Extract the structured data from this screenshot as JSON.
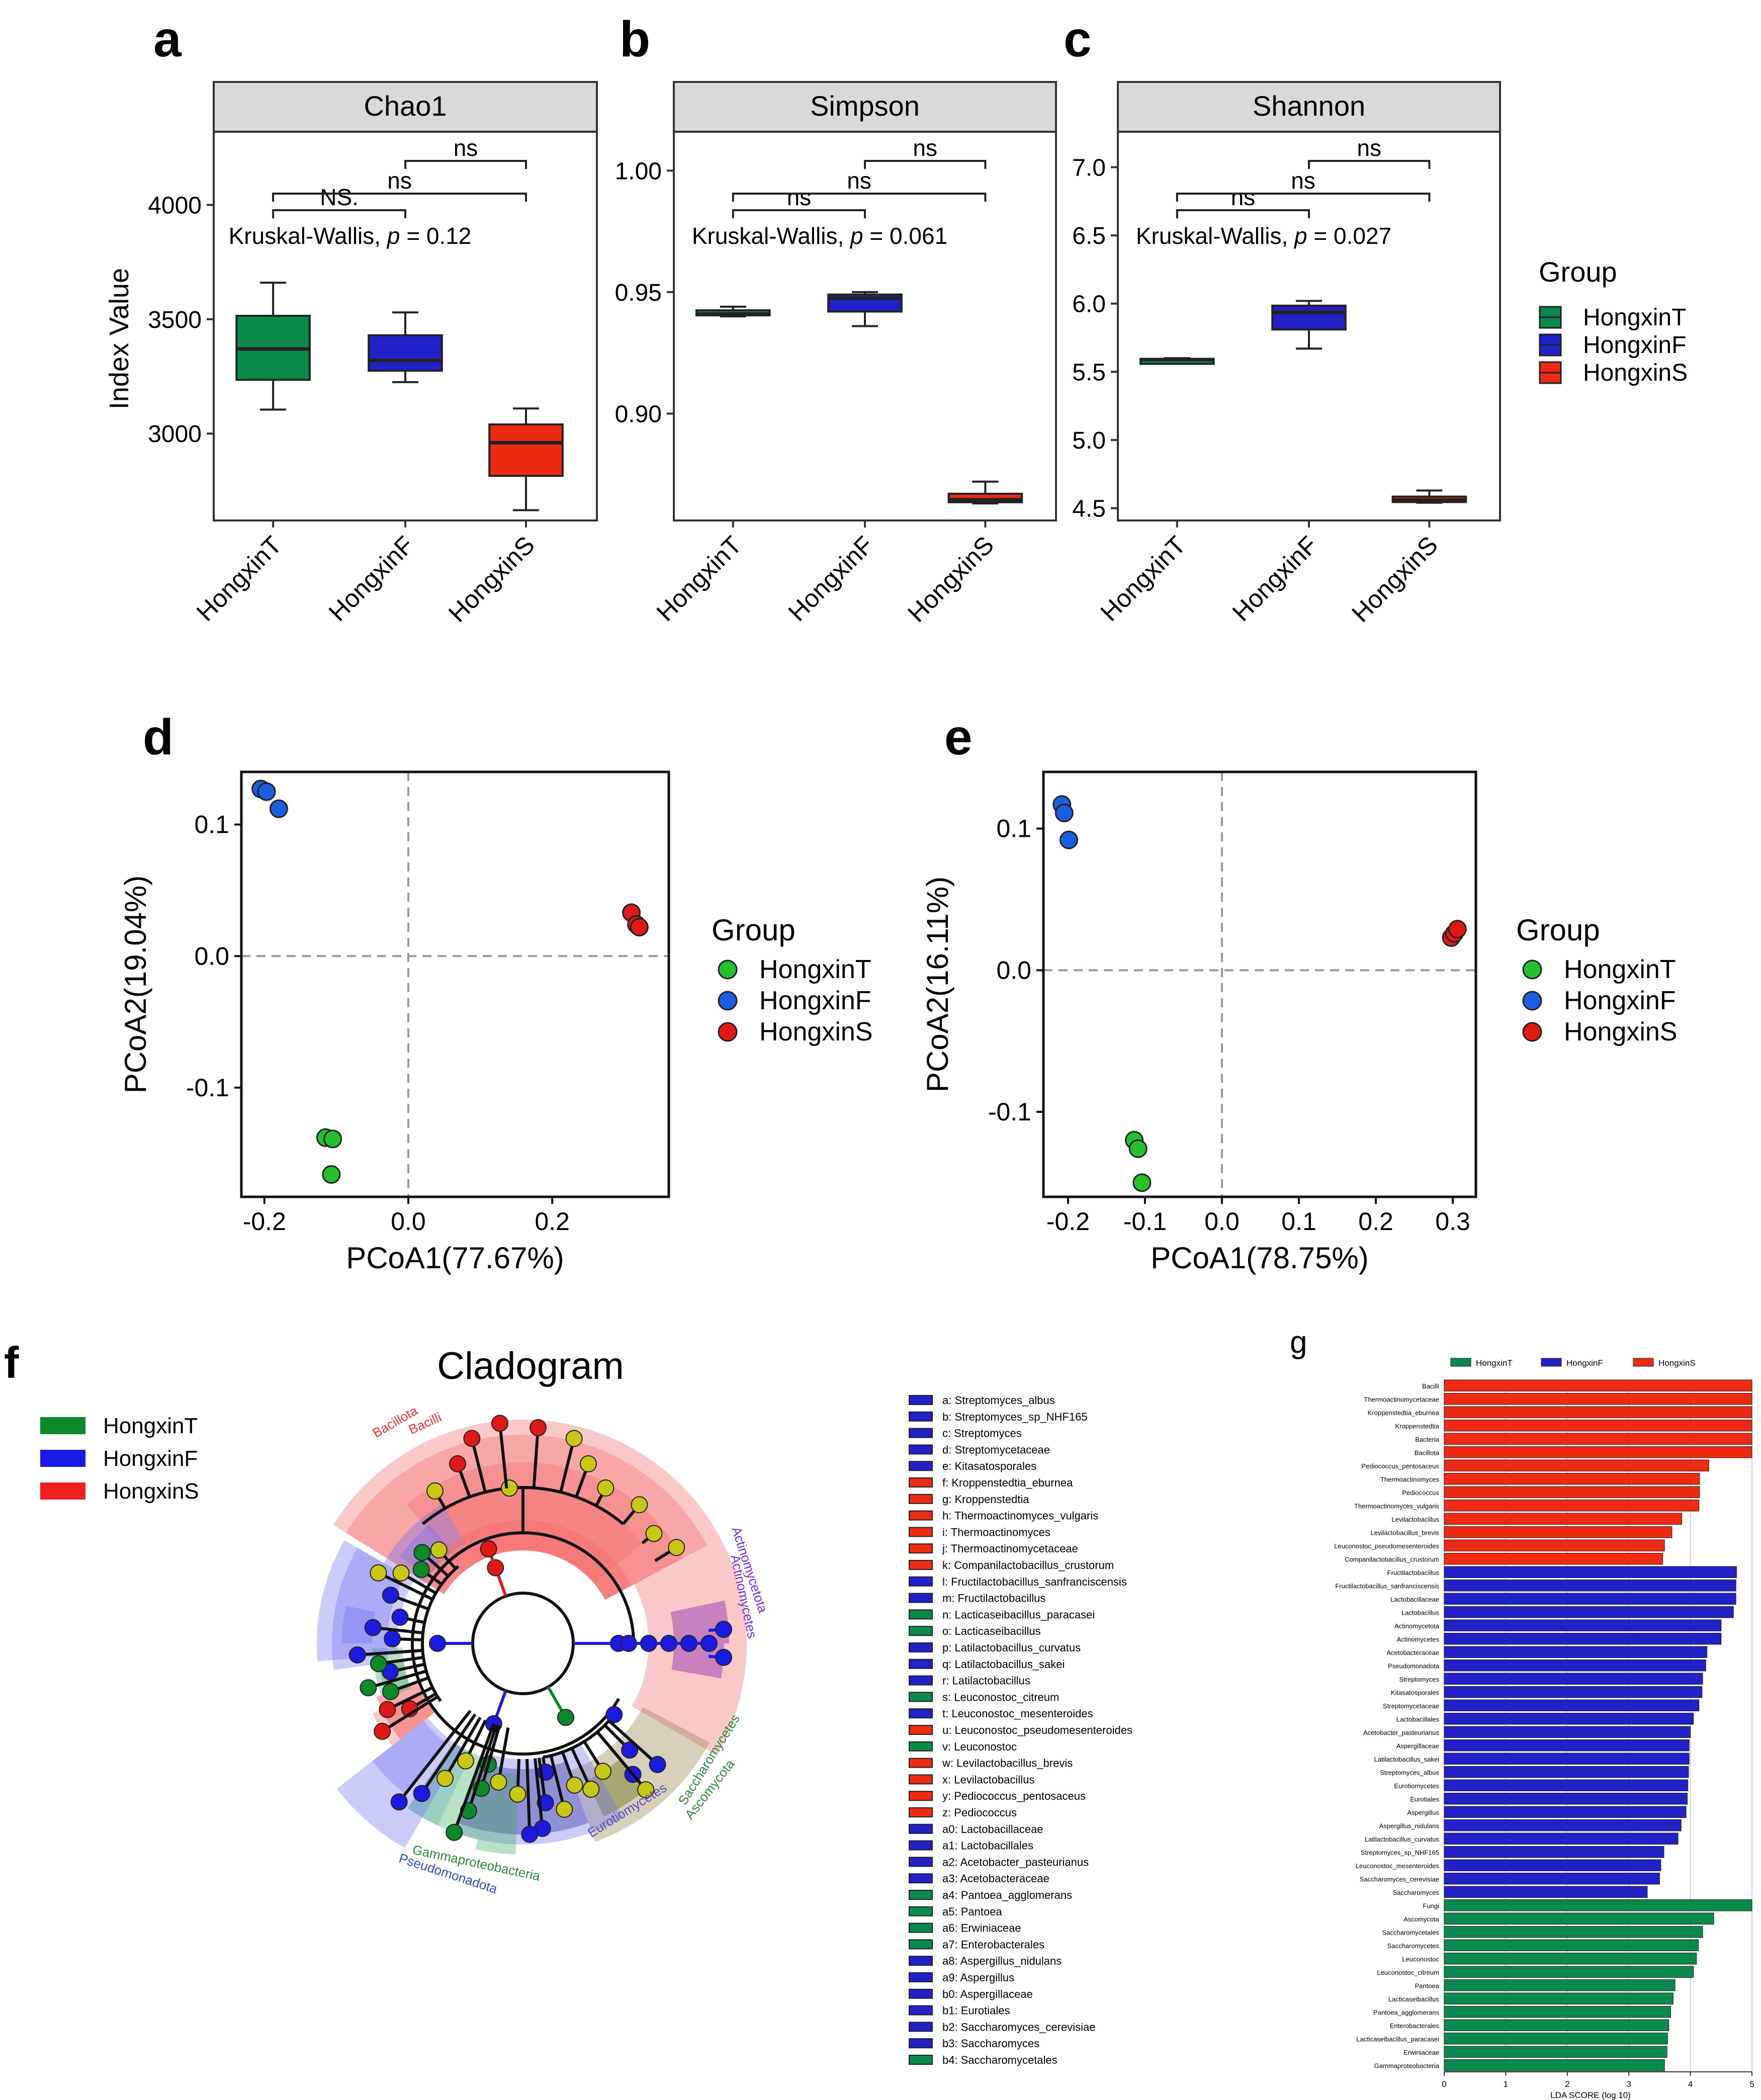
{
  "panel_labels": {
    "a": "a",
    "b": "b",
    "c": "c",
    "d": "d",
    "e": "e",
    "f": "f",
    "g": "g"
  },
  "colors": {
    "T": "#0a8a4a",
    "F": "#2121c8",
    "S": "#ee2a12",
    "Tpt": "#22c12d",
    "Fpt": "#1a5ee0",
    "Spt": "#e01818"
  },
  "alpha_groups": [
    "HongxinT",
    "HongxinF",
    "HongxinS"
  ],
  "alpha_legend": {
    "title": "Group",
    "items": [
      "HongxinT",
      "HongxinF",
      "HongxinS"
    ]
  },
  "pcoa_legend": {
    "title": "Group",
    "items": [
      "HongxinT",
      "HongxinF",
      "HongxinS"
    ]
  },
  "sig_labels": {
    "chao_short": "NS.",
    "ns": "ns"
  },
  "chart_data": [
    {
      "type": "box",
      "id": "a",
      "title": "Chao1",
      "ylabel": "Index Value",
      "ylim": [
        2620,
        4320
      ],
      "yticks": [
        3000,
        3500,
        4000
      ],
      "kw": {
        "prefix": "Kruskal-Wallis, ",
        "p": "p",
        "value": " = 0.12"
      },
      "boxes": [
        {
          "group": "HongxinT",
          "min": 3105,
          "q1": 3235,
          "median": 3370,
          "q3": 3515,
          "max": 3660
        },
        {
          "group": "HongxinF",
          "min": 3225,
          "q1": 3275,
          "median": 3320,
          "q3": 3430,
          "max": 3530
        },
        {
          "group": "HongxinS",
          "min": 2665,
          "q1": 2815,
          "median": 2960,
          "q3": 3040,
          "max": 3110
        }
      ]
    },
    {
      "type": "box",
      "id": "b",
      "title": "Simpson",
      "ylabel": "",
      "ylim": [
        0.856,
        1.016
      ],
      "yticks": [
        0.9,
        0.95,
        1.0
      ],
      "ytick_labels": [
        "0.90",
        "0.95",
        "1.00"
      ],
      "kw": {
        "prefix": "Kruskal-Wallis, ",
        "p": "p",
        "value": " = 0.061"
      },
      "boxes": [
        {
          "group": "HongxinT",
          "min": 0.94,
          "q1": 0.9405,
          "median": 0.941,
          "q3": 0.9425,
          "max": 0.944
        },
        {
          "group": "HongxinF",
          "min": 0.936,
          "q1": 0.942,
          "median": 0.9475,
          "q3": 0.949,
          "max": 0.95
        },
        {
          "group": "HongxinS",
          "min": 0.863,
          "q1": 0.8635,
          "median": 0.8645,
          "q3": 0.867,
          "max": 0.872
        }
      ]
    },
    {
      "type": "box",
      "id": "c",
      "title": "Shannon",
      "ylabel": "",
      "ylim": [
        4.41,
        7.26
      ],
      "yticks": [
        4.5,
        5.0,
        5.5,
        6.0,
        6.5,
        7.0
      ],
      "ytick_labels": [
        "4.5",
        "5.0",
        "5.5",
        "6.0",
        "6.5",
        "7.0"
      ],
      "kw": {
        "prefix": "Kruskal-Wallis, ",
        "p": "p",
        "value": " = 0.027"
      },
      "boxes": [
        {
          "group": "HongxinT",
          "min": 5.575,
          "q1": 5.58,
          "median": 5.59,
          "q3": 5.595,
          "max": 5.6
        },
        {
          "group": "HongxinF",
          "min": 5.67,
          "q1": 5.81,
          "median": 5.935,
          "q3": 5.985,
          "max": 6.02
        },
        {
          "group": "HongxinS",
          "min": 4.54,
          "q1": 4.545,
          "median": 4.56,
          "q3": 4.585,
          "max": 4.63
        }
      ]
    },
    {
      "type": "scatter",
      "id": "d",
      "xlabel": "PCoA1(77.67%)",
      "ylabel": "PCoA2(19.04%)",
      "xlim": [
        -0.232,
        0.362
      ],
      "ylim": [
        -0.183,
        0.14
      ],
      "xticks": [
        -0.2,
        0.0,
        0.2
      ],
      "xtick_labels": [
        "-0.2",
        "0.0",
        "0.2"
      ],
      "yticks": [
        -0.1,
        0.0,
        0.1
      ],
      "ytick_labels": [
        "-0.1",
        "0.0",
        "0.1"
      ],
      "series": [
        {
          "name": "HongxinT",
          "points": [
            [
              -0.115,
              -0.138
            ],
            [
              -0.105,
              -0.139
            ],
            [
              -0.107,
              -0.166
            ]
          ]
        },
        {
          "name": "HongxinF",
          "points": [
            [
              -0.205,
              0.127
            ],
            [
              -0.197,
              0.125
            ],
            [
              -0.18,
              0.112
            ]
          ]
        },
        {
          "name": "HongxinS",
          "points": [
            [
              0.31,
              0.033
            ],
            [
              0.317,
              0.024
            ],
            [
              0.321,
              0.022
            ]
          ]
        }
      ]
    },
    {
      "type": "scatter",
      "id": "e",
      "xlabel": "PCoA1(78.75%)",
      "ylabel": "PCoA2(16.11%)",
      "xlim": [
        -0.232,
        0.33
      ],
      "ylim": [
        -0.16,
        0.14
      ],
      "xticks": [
        -0.2,
        -0.1,
        0.0,
        0.1,
        0.2,
        0.3
      ],
      "xtick_labels": [
        "-0.2",
        "-0.1",
        "0.0",
        "0.1",
        "0.2",
        "0.3"
      ],
      "yticks": [
        -0.1,
        0.0,
        0.1
      ],
      "ytick_labels": [
        "-0.1",
        "0.0",
        "0.1"
      ],
      "series": [
        {
          "name": "HongxinT",
          "points": [
            [
              -0.114,
              -0.12
            ],
            [
              -0.109,
              -0.126
            ],
            [
              -0.104,
              -0.15
            ]
          ]
        },
        {
          "name": "HongxinF",
          "points": [
            [
              -0.208,
              0.117
            ],
            [
              -0.205,
              0.111
            ],
            [
              -0.199,
              0.092
            ]
          ]
        },
        {
          "name": "HongxinS",
          "points": [
            [
              0.298,
              0.023
            ],
            [
              0.302,
              0.026
            ],
            [
              0.306,
              0.029
            ]
          ]
        }
      ]
    },
    {
      "type": "bar",
      "id": "g",
      "orientation": "horizontal",
      "xlabel": "LDA SCORE (log 10)",
      "xlim": [
        0,
        5
      ],
      "xticks": [
        0,
        1,
        2,
        3,
        4,
        5
      ],
      "legend": [
        "HongxinT",
        "HongxinF",
        "HongxinS"
      ],
      "categories": [
        "Bacilli",
        "Thermoactinomycetaceae",
        "Kroppenstedtia_eburnea",
        "Kroppenstedtia",
        "Bacteria",
        "Bacillota",
        "Pediococcus_pentosaceus",
        "Thermoactinomyces",
        "Pediococcus",
        "Thermoactinomyces_vulgaris",
        "Levilactobacillus",
        "Levilactobacillus_brevis",
        "Leuconostoc_pseudomesenteroides",
        "Companilactobacillus_crustorum",
        "Fructilactobacillus",
        "Fructilactobacillus_sanfranciscensis",
        "Lactobacillaceae",
        "Lactobacillus",
        "Actinomycetota",
        "Actinomycetes",
        "Acetobacteraceae",
        "Pseudomonadota",
        "Streptomyces",
        "Kitasatosporales",
        "Streptomycetaceae",
        "Lactobacillales",
        "Acetobacter_pasteurianus",
        "Aspergillaceae",
        "Latilactobacillus_sakei",
        "Streptomyces_albus",
        "Eurotiomycetes",
        "Eurotiales",
        "Aspergillus",
        "Aspergillus_nidulans",
        "Latilactobacillus_curvatus",
        "Streptomyces_sp_NHF165",
        "Leuconostoc_mesenteroides",
        "Saccharomyces_cerevisiae",
        "Saccharomyces",
        "Fungi",
        "Ascomycota",
        "Saccharomycetales",
        "Saccharomycetes",
        "Leuconostoc",
        "Leuconostoc_citreum",
        "Pantoea",
        "Lacticaseibacillus",
        "Pantoea_agglomerans",
        "Enterobacterales",
        "Lacticaseibacillus_paracasei",
        "Erwiniaceae",
        "Gammaproteobacteria"
      ],
      "groups": [
        "HongxinS",
        "HongxinS",
        "HongxinS",
        "HongxinS",
        "HongxinS",
        "HongxinS",
        "HongxinS",
        "HongxinS",
        "HongxinS",
        "HongxinS",
        "HongxinS",
        "HongxinS",
        "HongxinS",
        "HongxinS",
        "HongxinF",
        "HongxinF",
        "HongxinF",
        "HongxinF",
        "HongxinF",
        "HongxinF",
        "HongxinF",
        "HongxinF",
        "HongxinF",
        "HongxinF",
        "HongxinF",
        "HongxinF",
        "HongxinF",
        "HongxinF",
        "HongxinF",
        "HongxinF",
        "HongxinF",
        "HongxinF",
        "HongxinF",
        "HongxinF",
        "HongxinF",
        "HongxinF",
        "HongxinF",
        "HongxinF",
        "HongxinF",
        "HongxinT",
        "HongxinT",
        "HongxinT",
        "HongxinT",
        "HongxinT",
        "HongxinT",
        "HongxinT",
        "HongxinT",
        "HongxinT",
        "HongxinT",
        "HongxinT",
        "HongxinT",
        "HongxinT"
      ],
      "values": [
        5.1,
        5.08,
        5.05,
        5.05,
        5.04,
        5.03,
        4.3,
        4.15,
        4.15,
        4.14,
        3.86,
        3.7,
        3.58,
        3.55,
        4.75,
        4.74,
        4.74,
        4.7,
        4.5,
        4.5,
        4.27,
        4.25,
        4.2,
        4.19,
        4.14,
        4.05,
        4.0,
        3.98,
        3.98,
        3.97,
        3.96,
        3.95,
        3.93,
        3.85,
        3.8,
        3.57,
        3.52,
        3.5,
        3.3,
        5.1,
        4.38,
        4.2,
        4.13,
        4.1,
        4.05,
        3.75,
        3.72,
        3.68,
        3.65,
        3.63,
        3.62,
        3.58
      ]
    }
  ],
  "cladogram": {
    "title": "Cladogram",
    "legend": [
      "HongxinT",
      "HongxinF",
      "HongxinS"
    ],
    "clade_labels": [
      "Bacillota",
      "Bacilli",
      "Actinomycetota",
      "Actinomycetes",
      "Saccharomycetes",
      "Ascomycota",
      "Eurotiomycetes",
      "Gammaproteobacteria",
      "Pseudomonadota"
    ],
    "taxa": [
      {
        "code": "a",
        "name": "Streptomyces_albus",
        "group": "F"
      },
      {
        "code": "b",
        "name": "Streptomyces_sp_NHF165",
        "group": "F"
      },
      {
        "code": "c",
        "name": "Streptomyces",
        "group": "F"
      },
      {
        "code": "d",
        "name": "Streptomycetaceae",
        "group": "F"
      },
      {
        "code": "e",
        "name": "Kitasatosporales",
        "group": "F"
      },
      {
        "code": "f",
        "name": "Kroppenstedtia_eburnea",
        "group": "S"
      },
      {
        "code": "g",
        "name": "Kroppenstedtia",
        "group": "S"
      },
      {
        "code": "h",
        "name": "Thermoactinomyces_vulgaris",
        "group": "S"
      },
      {
        "code": "i",
        "name": "Thermoactinomyces",
        "group": "S"
      },
      {
        "code": "j",
        "name": "Thermoactinomycetaceae",
        "group": "S"
      },
      {
        "code": "k",
        "name": "Companilactobacillus_crustorum",
        "group": "S"
      },
      {
        "code": "l",
        "name": "Fructilactobacillus_sanfranciscensis",
        "group": "F"
      },
      {
        "code": "m",
        "name": "Fructilactobacillus",
        "group": "F"
      },
      {
        "code": "n",
        "name": "Lacticaseibacillus_paracasei",
        "group": "T"
      },
      {
        "code": "o",
        "name": "Lacticaseibacillus",
        "group": "T"
      },
      {
        "code": "p",
        "name": "Latilactobacillus_curvatus",
        "group": "F"
      },
      {
        "code": "q",
        "name": "Latilactobacillus_sakei",
        "group": "F"
      },
      {
        "code": "r",
        "name": "Latilactobacillus",
        "group": "F"
      },
      {
        "code": "s",
        "name": "Leuconostoc_citreum",
        "group": "T"
      },
      {
        "code": "t",
        "name": "Leuconostoc_mesenteroides",
        "group": "F"
      },
      {
        "code": "u",
        "name": "Leuconostoc_pseudomesenteroides",
        "group": "S"
      },
      {
        "code": "v",
        "name": "Leuconostoc",
        "group": "T"
      },
      {
        "code": "w",
        "name": "Levilactobacillus_brevis",
        "group": "S"
      },
      {
        "code": "x",
        "name": "Levilactobacillus",
        "group": "S"
      },
      {
        "code": "y",
        "name": "Pediococcus_pentosaceus",
        "group": "S"
      },
      {
        "code": "z",
        "name": "Pediococcus",
        "group": "S"
      },
      {
        "code": "a0",
        "name": "Lactobacillaceae",
        "group": "F"
      },
      {
        "code": "a1",
        "name": "Lactobacillales",
        "group": "F"
      },
      {
        "code": "a2",
        "name": "Acetobacter_pasteurianus",
        "group": "F"
      },
      {
        "code": "a3",
        "name": "Acetobacteraceae",
        "group": "F"
      },
      {
        "code": "a4",
        "name": "Pantoea_agglomerans",
        "group": "T"
      },
      {
        "code": "a5",
        "name": "Pantoea",
        "group": "T"
      },
      {
        "code": "a6",
        "name": "Erwiniaceae",
        "group": "T"
      },
      {
        "code": "a7",
        "name": "Enterobacterales",
        "group": "T"
      },
      {
        "code": "a8",
        "name": "Aspergillus_nidulans",
        "group": "F"
      },
      {
        "code": "a9",
        "name": "Aspergillus",
        "group": "F"
      },
      {
        "code": "b0",
        "name": "Aspergillaceae",
        "group": "F"
      },
      {
        "code": "b1",
        "name": "Eurotiales",
        "group": "F"
      },
      {
        "code": "b2",
        "name": "Saccharomyces_cerevisiae",
        "group": "F"
      },
      {
        "code": "b3",
        "name": "Saccharomyces",
        "group": "F"
      },
      {
        "code": "b4",
        "name": "Saccharomycetales",
        "group": "T"
      }
    ]
  }
}
